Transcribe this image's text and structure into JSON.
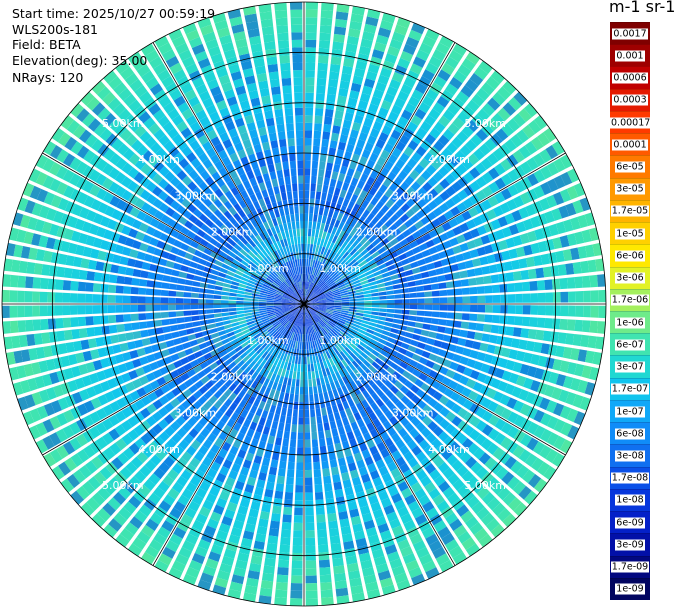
{
  "info": {
    "start_time": "Start time: 2025/10/27 00:59:19",
    "instrument": "WLS200s-181",
    "field": "Field: BETA",
    "elevation": "Elevation(deg): 35.00",
    "nrays": "NRays: 120"
  },
  "colorbar": {
    "unit_label": "m-1 sr-1",
    "levels": [
      {
        "label": "0.0017",
        "color": "#7f0000"
      },
      {
        "label": "0.001",
        "color": "#9e0000"
      },
      {
        "label": "0.0006",
        "color": "#c00000"
      },
      {
        "label": "0.0003",
        "color": "#e41a00"
      },
      {
        "label": "0.00017",
        "color": "#ff3a00"
      },
      {
        "label": "0.0001",
        "color": "#ff5a00"
      },
      {
        "label": "6e-05",
        "color": "#ff7a00"
      },
      {
        "label": "3e-05",
        "color": "#ff9900"
      },
      {
        "label": "1.7e-05",
        "color": "#ffb400"
      },
      {
        "label": "1e-05",
        "color": "#ffd000"
      },
      {
        "label": "6e-06",
        "color": "#ffe800"
      },
      {
        "label": "3e-06",
        "color": "#e2f226"
      },
      {
        "label": "1.7e-06",
        "color": "#a4f05e"
      },
      {
        "label": "1e-06",
        "color": "#6eeb8a"
      },
      {
        "label": "6e-07",
        "color": "#40e4b0"
      },
      {
        "label": "3e-07",
        "color": "#20d8d2"
      },
      {
        "label": "1.7e-07",
        "color": "#10c4ee"
      },
      {
        "label": "1e-07",
        "color": "#10a8f8"
      },
      {
        "label": "6e-08",
        "color": "#108cf8"
      },
      {
        "label": "3e-08",
        "color": "#1070f0"
      },
      {
        "label": "1.7e-08",
        "color": "#0a50e8"
      },
      {
        "label": "1e-08",
        "color": "#0636dc"
      },
      {
        "label": "6e-09",
        "color": "#0420c8"
      },
      {
        "label": "3e-09",
        "color": "#0210a8"
      },
      {
        "label": "1.7e-09",
        "color": "#020880"
      },
      {
        "label": "1e-09",
        "color": "#010560"
      }
    ]
  },
  "chart_data": {
    "type": "heatmap",
    "projection": "polar-ppi",
    "field": "BETA",
    "elevation_deg": 35.0,
    "n_rays": 120,
    "range_max_km": 6.0,
    "range_rings_km": [
      1,
      2,
      3,
      4,
      5,
      6
    ],
    "range_ring_labels": [
      "1.00km",
      "2.00km",
      "3.00km",
      "4.00km",
      "5.00km"
    ],
    "spoke_step_deg": 30,
    "value_profile_by_range": [
      {
        "range_km": 0.3,
        "value": "1e-08"
      },
      {
        "range_km": 0.8,
        "value": "3e-08"
      },
      {
        "range_km": 1.3,
        "value": "1.7e-07"
      },
      {
        "range_km": 2.0,
        "value": "3e-08"
      },
      {
        "range_km": 3.0,
        "value": "6e-08"
      },
      {
        "range_km": 4.0,
        "value": "1.7e-07"
      },
      {
        "range_km": 5.0,
        "value": "3e-07"
      },
      {
        "range_km": 5.8,
        "value": "6e-07"
      }
    ]
  }
}
